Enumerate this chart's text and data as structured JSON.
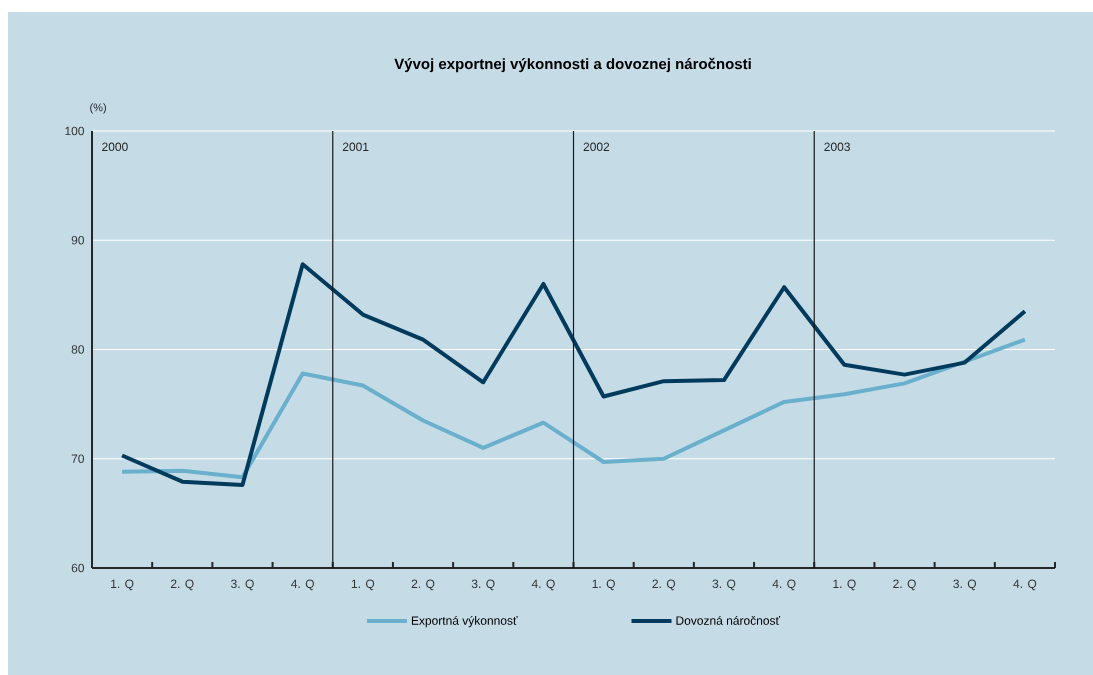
{
  "chart_data": {
    "type": "line",
    "title": "Vývoj exportnej výkonnosti a dovoznej náročnosti",
    "ylabel": "(%)",
    "categories": [
      "1. Q",
      "2. Q",
      "3. Q",
      "4. Q",
      "1. Q",
      "2. Q",
      "3. Q",
      "4. Q",
      "1. Q",
      "2. Q",
      "3. Q",
      "4. Q",
      "1. Q",
      "2. Q",
      "3. Q",
      "4. Q"
    ],
    "series": [
      {
        "name": "Exportná výkonnosť",
        "color": "#6aafcc",
        "values": [
          68.8,
          68.9,
          68.3,
          77.8,
          76.7,
          73.5,
          71.0,
          73.3,
          69.7,
          70.0,
          72.6,
          75.2,
          75.9,
          76.9,
          78.9,
          80.9
        ]
      },
      {
        "name": "Dovozná náročnosť",
        "color": "#003a5c",
        "values": [
          70.3,
          67.9,
          67.6,
          87.8,
          83.2,
          80.9,
          77.0,
          86.0,
          75.7,
          77.1,
          77.2,
          85.7,
          78.6,
          77.7,
          78.8,
          83.5
        ]
      }
    ],
    "ylim": [
      60,
      100
    ],
    "yticks": [
      60,
      70,
      80,
      90,
      100
    ],
    "grid": "y",
    "legend": "bottom",
    "marker": "none",
    "line_style": "solid",
    "annotations": [
      "2000",
      "2001",
      "2002",
      "2003"
    ]
  }
}
